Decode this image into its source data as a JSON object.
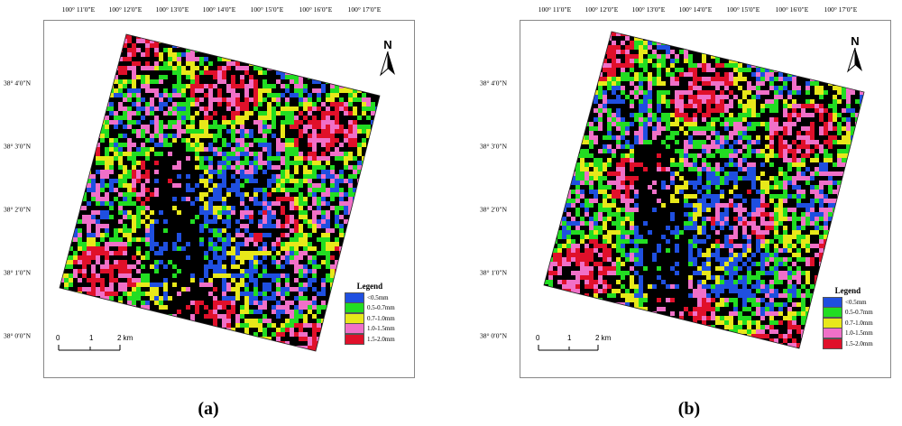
{
  "panels": [
    {
      "caption": "(a)",
      "lon_labels": [
        "100° 11′0″E",
        "100° 12′0″E",
        "100° 13′0″E",
        "100° 14′0″E",
        "100° 15′0″E",
        "100° 16′0″E",
        "100° 17′0″E"
      ],
      "lat_labels": [
        "38° 4′0″N",
        "38° 3′0″N",
        "38° 2′0″N",
        "38° 1′0″N",
        "38° 0′0″N"
      ],
      "north": "N",
      "legend_title": "Legend",
      "legend_items": [
        "<0.5mm",
        "0.5-0.7mm",
        "0.7-1.0mm",
        "1.0-1.5mm",
        "1.5-2.0mm"
      ],
      "scale_labels": [
        "0",
        "1",
        "2 km"
      ]
    },
    {
      "caption": "(b)",
      "lon_labels": [
        "100° 11′0″E",
        "100° 12′0″E",
        "100° 13′0″E",
        "100° 14′0″E",
        "100° 15′0″E",
        "100° 16′0″E",
        "100° 17′0″E"
      ],
      "lat_labels": [
        "38° 4′0″N",
        "38° 3′0″N",
        "38° 2′0″N",
        "38° 1′0″N",
        "38° 0′0″N"
      ],
      "north": "N",
      "legend_title": "Legend",
      "legend_items": [
        "<0.5mm",
        "0.5-0.7mm",
        "0.7-1.0mm",
        "1.0-1.5mm",
        "1.5-2.0mm"
      ],
      "scale_labels": [
        "0",
        "1",
        "2 km"
      ]
    }
  ],
  "colors": {
    "class_1": "#1f4fe0",
    "class_2": "#22dd22",
    "class_3": "#e8e81a",
    "class_4": "#f070c8",
    "class_5": "#e0102a",
    "background": "#000000"
  }
}
